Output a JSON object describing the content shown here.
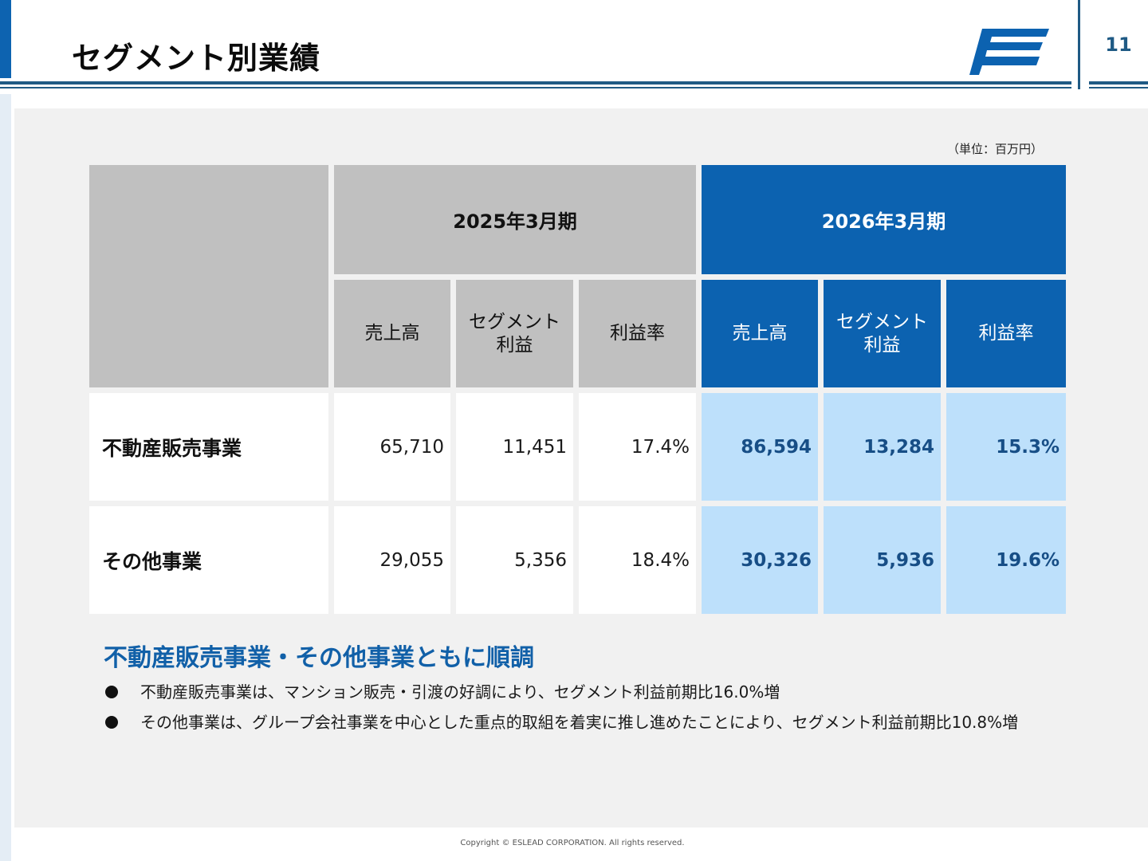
{
  "header": {
    "title": "セグメント別業績",
    "page_number": "11",
    "logo_letter": "E"
  },
  "unit_note": "（単位：百万円）",
  "table": {
    "periods": [
      "2025年3月期",
      "2026年3月期"
    ],
    "columns": [
      "売上高",
      "セグメント\n利益",
      "利益率"
    ],
    "rows": [
      {
        "label": "不動産販売事業",
        "fy2025": [
          "65,710",
          "11,451",
          "17.4%"
        ],
        "fy2026": [
          "86,594",
          "13,284",
          "15.3%"
        ]
      },
      {
        "label": "その他事業",
        "fy2025": [
          "29,055",
          "5,356",
          "18.4%"
        ],
        "fy2026": [
          "30,326",
          "5,936",
          "19.6%"
        ]
      }
    ]
  },
  "summary": {
    "headline": "不動産販売事業・その他事業ともに順調",
    "bullets": [
      "不動産販売事業は、マンション販売・引渡の好調により、セグメント利益前期比16.0%増",
      "その他事業は、グループ会社事業を中心とした重点的取組を着実に推し進めたことにより、セグメント利益前期比10.8%増"
    ]
  },
  "footer": {
    "copyright": "Copyright © ESLEAD CORPORATION. All rights reserved."
  },
  "colors": {
    "brand_blue": "#0c62b0",
    "light_blue": "#bde0fb",
    "header_gray": "#c0c0c0",
    "accent_navy": "#1f5a84"
  }
}
